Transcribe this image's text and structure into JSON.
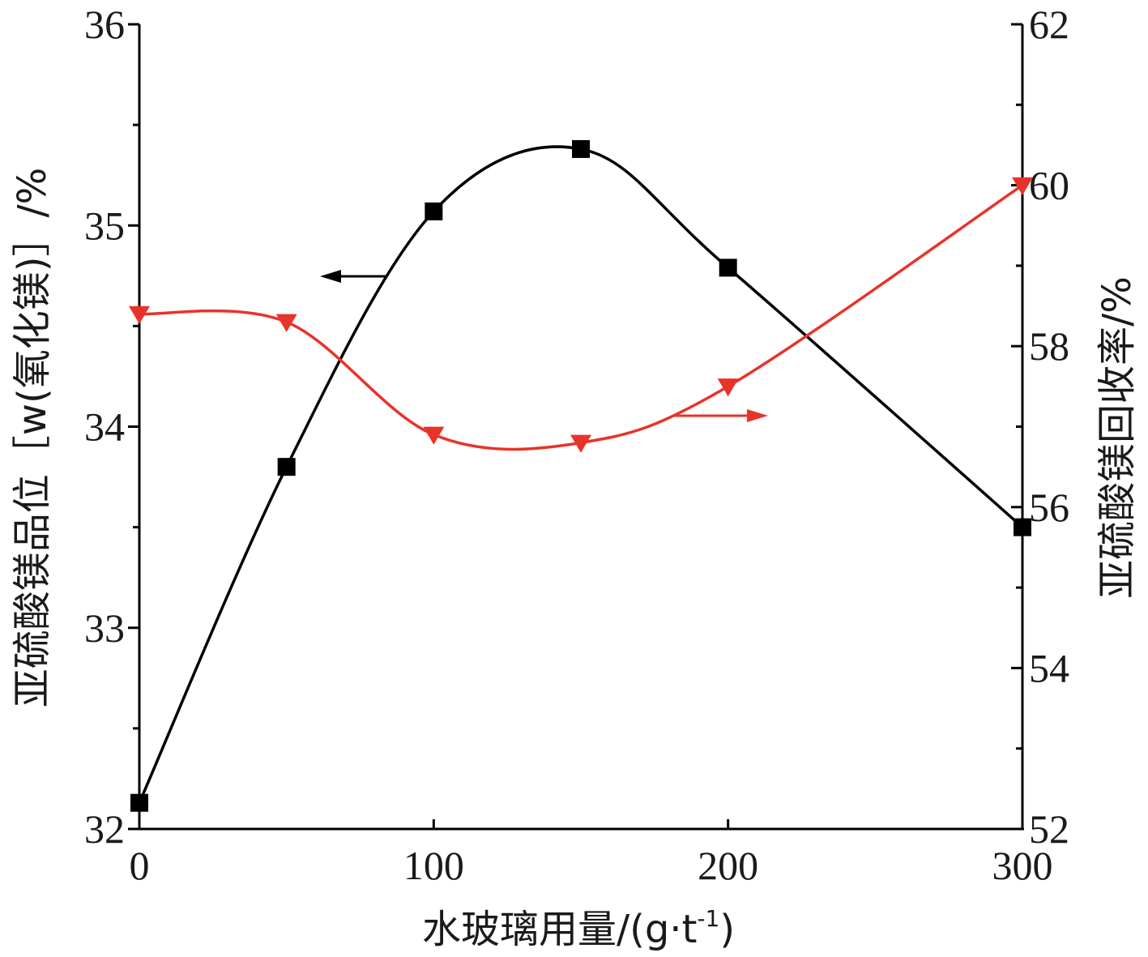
{
  "chart_data": {
    "type": "line",
    "xlabel": "水玻璃用量/(g·t",
    "xlabel_sup": "-1",
    "xlabel_end": ")",
    "ylabel_left": "亚硫酸镁品位［w(氧化镁)］/%",
    "ylabel_right": "亚硫酸镁回收率/%",
    "xlim": [
      0,
      300
    ],
    "ylim_left": [
      32,
      36
    ],
    "ylim_right": [
      52,
      62
    ],
    "x_ticks": [
      0,
      100,
      200,
      300
    ],
    "y_ticks_left": [
      32,
      33,
      34,
      35,
      36
    ],
    "y_ticks_right": [
      52,
      54,
      56,
      58,
      60,
      62
    ],
    "series": [
      {
        "axis": "left",
        "color": "#000000",
        "marker": "square",
        "x": [
          0,
          50,
          100,
          150,
          200,
          300
        ],
        "y": [
          32.13,
          33.8,
          35.07,
          35.38,
          34.79,
          33.5
        ]
      },
      {
        "axis": "right",
        "color": "#e8332a",
        "marker": "triangle-down",
        "x": [
          0,
          50,
          100,
          150,
          200,
          300
        ],
        "y": [
          58.4,
          58.3,
          56.9,
          56.8,
          57.5,
          60.0
        ]
      }
    ],
    "annotations": [
      {
        "type": "arrow",
        "direction": "left",
        "series": 0,
        "color": "#000000"
      },
      {
        "type": "arrow",
        "direction": "right",
        "series": 1,
        "color": "#e8332a"
      }
    ]
  }
}
